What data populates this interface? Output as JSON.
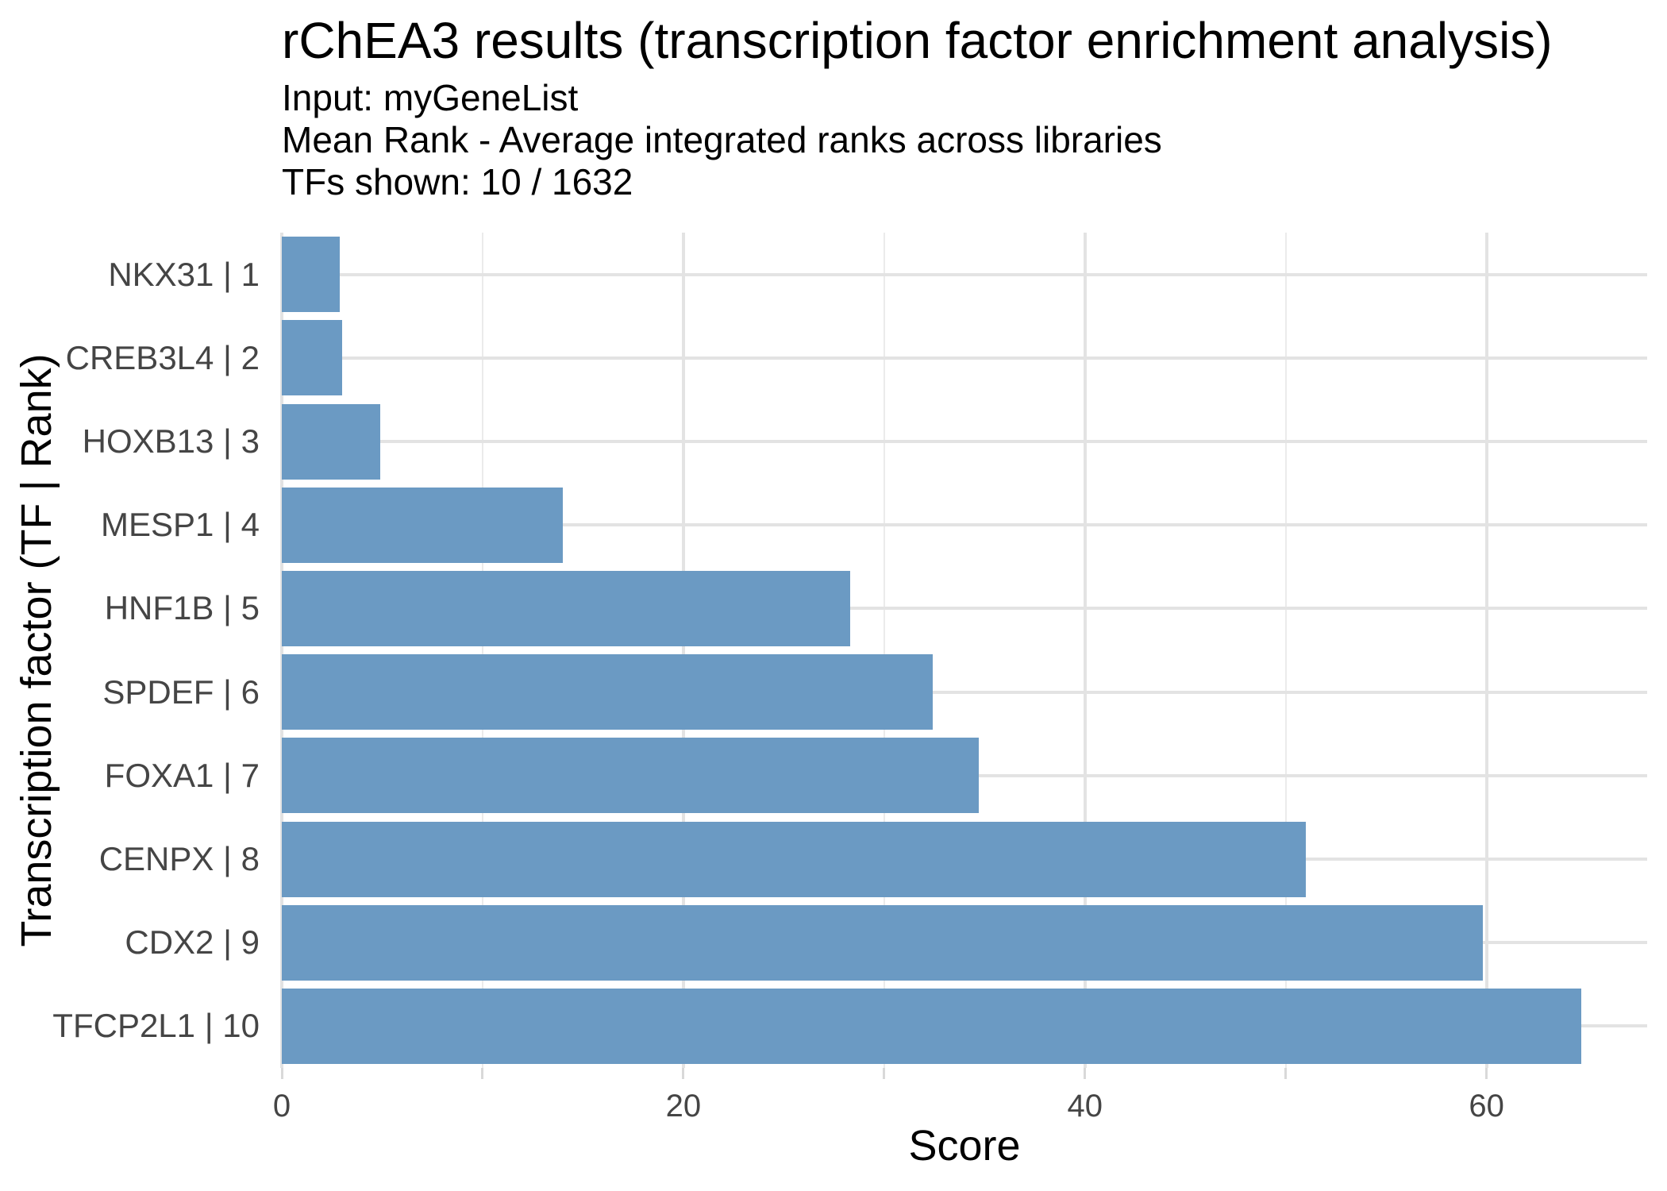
{
  "chart_data": {
    "type": "bar",
    "orientation": "horizontal",
    "title": "rChEA3 results (transcription factor enrichment analysis)",
    "subtitle_lines": [
      "Input: myGeneList",
      "Mean Rank - Average integrated ranks across libraries",
      "TFs shown: 10 / 1632"
    ],
    "xlabel": "Score",
    "ylabel": "Transcription factor (TF | Rank)",
    "categories": [
      "NKX31 | 1",
      "CREB3L4 | 2",
      "HOXB13 | 3",
      "MESP1 | 4",
      "HNF1B | 5",
      "SPDEF | 6",
      "FOXA1 | 7",
      "CENPX | 8",
      "CDX2 | 9",
      "TFCP2L1 | 10"
    ],
    "values": [
      2.9,
      3.0,
      4.9,
      14.0,
      28.3,
      32.4,
      34.7,
      51.0,
      59.8,
      64.7
    ],
    "xlim": [
      0,
      68
    ],
    "x_major_ticks": [
      0,
      20,
      40,
      60
    ],
    "x_minor_ticks": [
      10,
      30,
      50
    ],
    "grid": true,
    "legend": "none",
    "colors": {
      "bar_fill": "#6b9ac3",
      "grid_major": "#e3e3e3",
      "grid_minor": "#ebebeb",
      "tick_mark": "#d9d9d9",
      "axis_text": "#454545",
      "title_text": "#000000"
    }
  }
}
